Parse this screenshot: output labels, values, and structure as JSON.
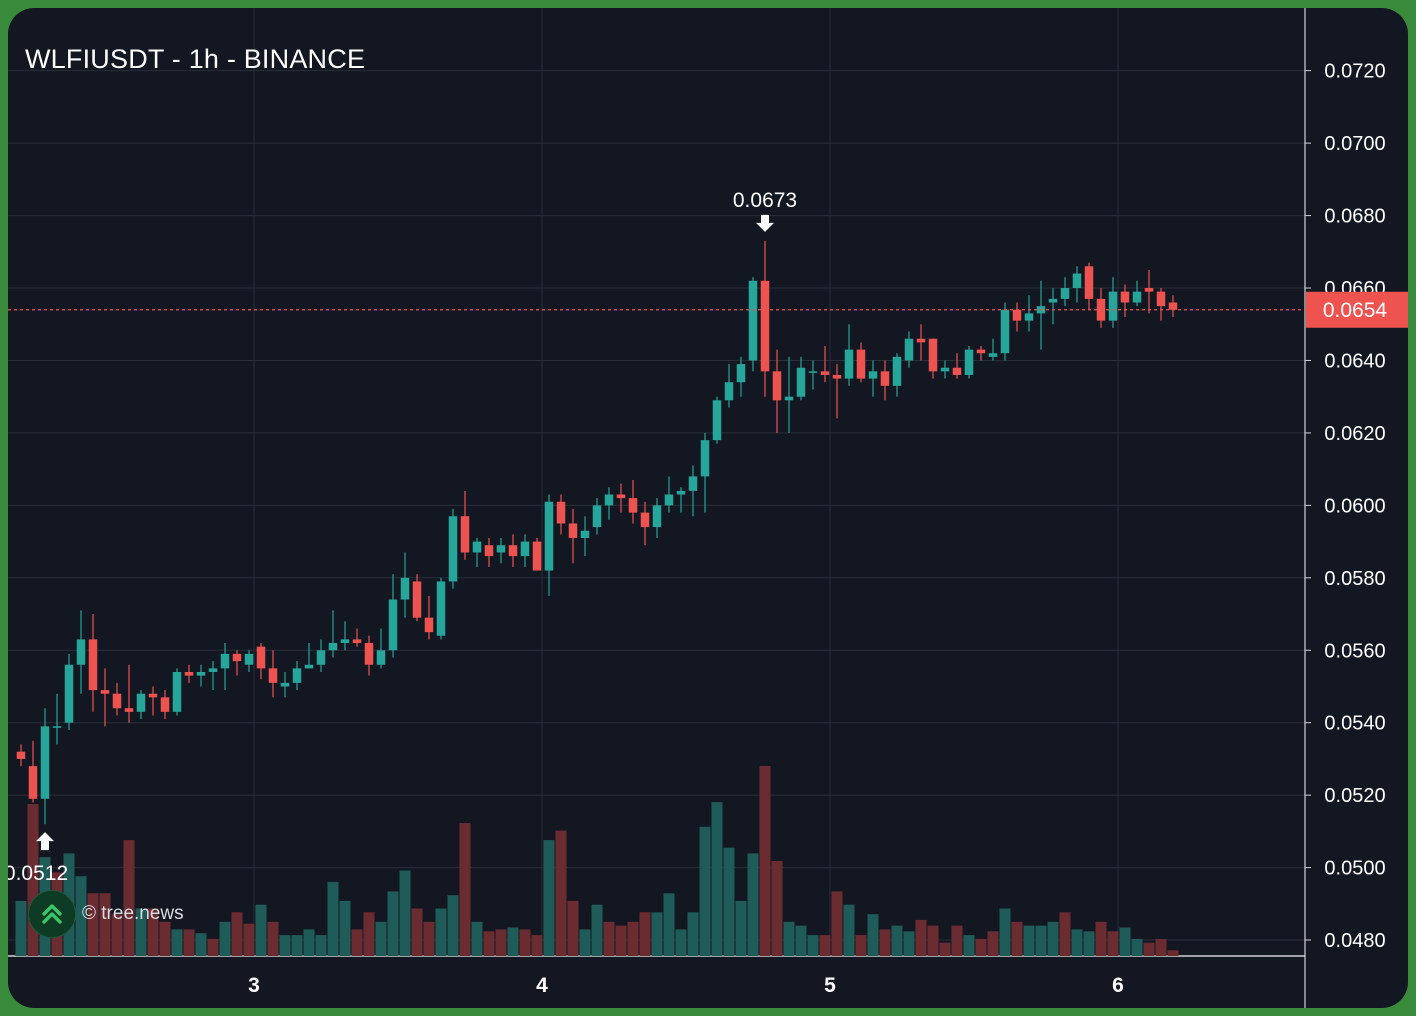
{
  "header": {
    "title": "WLFIUSDT - 1h - BINANCE"
  },
  "watermark": {
    "text": "© tree.news",
    "icon": "tree-news-logo-icon"
  },
  "colors": {
    "background": "#131722",
    "frame": "#3a8a3c",
    "up": "#26a69a",
    "down": "#ef5350",
    "grid": "#2a2e39",
    "text": "#ffffff"
  },
  "chart_data": {
    "type": "candlestick",
    "symbol": "WLFIUSDT",
    "interval": "1h",
    "exchange": "BINANCE",
    "y_ticks": [
      "0.0720",
      "0.0700",
      "0.0680",
      "0.0660",
      "0.0640",
      "0.0620",
      "0.0600",
      "0.0580",
      "0.0560",
      "0.0540",
      "0.0520",
      "0.0500",
      "0.0480"
    ],
    "x_ticks": [
      "3",
      "4",
      "5",
      "6"
    ],
    "ylim": [
      0.0473,
      0.0737
    ],
    "last_price": "0.0654",
    "annotations": [
      {
        "label": "0.0673",
        "type": "high",
        "price": 0.0673,
        "candle": 62
      },
      {
        "label": "0.0512",
        "type": "low",
        "price": 0.0512,
        "candle": 2
      }
    ],
    "candles": [
      [
        0.0532,
        0.0534,
        0.0528,
        0.053
      ],
      [
        0.0528,
        0.0535,
        0.0518,
        0.0519
      ],
      [
        0.0519,
        0.0544,
        0.0512,
        0.0539
      ],
      [
        0.0539,
        0.0548,
        0.0534,
        0.0539
      ],
      [
        0.054,
        0.0559,
        0.0538,
        0.0556
      ],
      [
        0.0556,
        0.0571,
        0.0548,
        0.0563
      ],
      [
        0.0563,
        0.057,
        0.0543,
        0.0549
      ],
      [
        0.0549,
        0.0555,
        0.0539,
        0.0548
      ],
      [
        0.0548,
        0.0551,
        0.0542,
        0.0544
      ],
      [
        0.0544,
        0.0556,
        0.054,
        0.0543
      ],
      [
        0.0543,
        0.0549,
        0.0541,
        0.0548
      ],
      [
        0.0548,
        0.055,
        0.0542,
        0.0547
      ],
      [
        0.0547,
        0.0549,
        0.0541,
        0.0543
      ],
      [
        0.0543,
        0.0555,
        0.0542,
        0.0554
      ],
      [
        0.0554,
        0.0556,
        0.0551,
        0.0553
      ],
      [
        0.0553,
        0.0556,
        0.055,
        0.0554
      ],
      [
        0.0554,
        0.0557,
        0.0549,
        0.0555
      ],
      [
        0.0555,
        0.0562,
        0.0549,
        0.0559
      ],
      [
        0.0559,
        0.056,
        0.0553,
        0.0557
      ],
      [
        0.0556,
        0.056,
        0.0554,
        0.0559
      ],
      [
        0.0561,
        0.0562,
        0.0552,
        0.0555
      ],
      [
        0.0555,
        0.056,
        0.0547,
        0.0551
      ],
      [
        0.055,
        0.0554,
        0.0547,
        0.0551
      ],
      [
        0.0551,
        0.0557,
        0.0549,
        0.0555
      ],
      [
        0.0555,
        0.0562,
        0.0555,
        0.0556
      ],
      [
        0.0556,
        0.0563,
        0.0554,
        0.056
      ],
      [
        0.056,
        0.0571,
        0.0558,
        0.0562
      ],
      [
        0.0562,
        0.0568,
        0.056,
        0.0563
      ],
      [
        0.0563,
        0.0566,
        0.0561,
        0.0562
      ],
      [
        0.0562,
        0.0564,
        0.0553,
        0.0556
      ],
      [
        0.0556,
        0.0566,
        0.0555,
        0.056
      ],
      [
        0.056,
        0.0581,
        0.0558,
        0.0574
      ],
      [
        0.0574,
        0.0587,
        0.0569,
        0.058
      ],
      [
        0.0579,
        0.0581,
        0.0568,
        0.0569
      ],
      [
        0.0569,
        0.0575,
        0.0563,
        0.0565
      ],
      [
        0.0564,
        0.058,
        0.0563,
        0.0579
      ],
      [
        0.0579,
        0.0599,
        0.0577,
        0.0597
      ],
      [
        0.0597,
        0.0604,
        0.0585,
        0.0587
      ],
      [
        0.0587,
        0.0591,
        0.0583,
        0.059
      ],
      [
        0.0589,
        0.0591,
        0.0583,
        0.0586
      ],
      [
        0.0587,
        0.0591,
        0.0584,
        0.0589
      ],
      [
        0.0589,
        0.0592,
        0.0583,
        0.0586
      ],
      [
        0.0586,
        0.0592,
        0.0583,
        0.059
      ],
      [
        0.059,
        0.0591,
        0.0582,
        0.0582
      ],
      [
        0.0582,
        0.0603,
        0.0575,
        0.0601
      ],
      [
        0.0601,
        0.0603,
        0.0592,
        0.0595
      ],
      [
        0.0595,
        0.0599,
        0.0584,
        0.0591
      ],
      [
        0.0591,
        0.0597,
        0.0586,
        0.0593
      ],
      [
        0.0594,
        0.0602,
        0.0592,
        0.06
      ],
      [
        0.06,
        0.0605,
        0.0596,
        0.0603
      ],
      [
        0.0603,
        0.0606,
        0.0598,
        0.0602
      ],
      [
        0.0602,
        0.0607,
        0.0595,
        0.0598
      ],
      [
        0.0598,
        0.0601,
        0.0589,
        0.0594
      ],
      [
        0.0594,
        0.0602,
        0.0591,
        0.06
      ],
      [
        0.06,
        0.0608,
        0.0598,
        0.0603
      ],
      [
        0.0603,
        0.0605,
        0.0598,
        0.0604
      ],
      [
        0.0604,
        0.0611,
        0.0597,
        0.0608
      ],
      [
        0.0608,
        0.062,
        0.0598,
        0.0618
      ],
      [
        0.0618,
        0.063,
        0.0617,
        0.0629
      ],
      [
        0.0629,
        0.0639,
        0.0627,
        0.0634
      ],
      [
        0.0634,
        0.0641,
        0.063,
        0.0639
      ],
      [
        0.064,
        0.0663,
        0.0637,
        0.0662
      ],
      [
        0.0662,
        0.0673,
        0.063,
        0.0637
      ],
      [
        0.0637,
        0.0643,
        0.062,
        0.0629
      ],
      [
        0.0629,
        0.0641,
        0.062,
        0.063
      ],
      [
        0.063,
        0.0641,
        0.0629,
        0.0638
      ],
      [
        0.0637,
        0.064,
        0.0632,
        0.0637
      ],
      [
        0.0637,
        0.0644,
        0.0634,
        0.0636
      ],
      [
        0.0636,
        0.0639,
        0.0624,
        0.0635
      ],
      [
        0.0635,
        0.065,
        0.0633,
        0.0643
      ],
      [
        0.0643,
        0.0645,
        0.0634,
        0.0635
      ],
      [
        0.0635,
        0.064,
        0.063,
        0.0637
      ],
      [
        0.0637,
        0.064,
        0.0629,
        0.0633
      ],
      [
        0.0633,
        0.0642,
        0.063,
        0.0641
      ],
      [
        0.064,
        0.0648,
        0.0638,
        0.0646
      ],
      [
        0.0646,
        0.065,
        0.064,
        0.0645
      ],
      [
        0.0646,
        0.0646,
        0.0635,
        0.0637
      ],
      [
        0.0637,
        0.064,
        0.0635,
        0.0638
      ],
      [
        0.0638,
        0.0642,
        0.0635,
        0.0636
      ],
      [
        0.0636,
        0.0644,
        0.0635,
        0.0643
      ],
      [
        0.0643,
        0.0644,
        0.064,
        0.0642
      ],
      [
        0.0641,
        0.0646,
        0.064,
        0.0642
      ],
      [
        0.0642,
        0.0656,
        0.064,
        0.0654
      ],
      [
        0.0654,
        0.0656,
        0.0648,
        0.0651
      ],
      [
        0.0651,
        0.0658,
        0.0648,
        0.0653
      ],
      [
        0.0653,
        0.0662,
        0.0643,
        0.0655
      ],
      [
        0.0656,
        0.066,
        0.065,
        0.0657
      ],
      [
        0.0657,
        0.0663,
        0.0655,
        0.066
      ],
      [
        0.066,
        0.0666,
        0.0656,
        0.0664
      ],
      [
        0.0666,
        0.0667,
        0.0654,
        0.0657
      ],
      [
        0.0657,
        0.066,
        0.0649,
        0.0651
      ],
      [
        0.0651,
        0.0663,
        0.0649,
        0.0659
      ],
      [
        0.0659,
        0.0661,
        0.0652,
        0.0656
      ],
      [
        0.0656,
        0.0662,
        0.0655,
        0.0659
      ],
      [
        0.066,
        0.0665,
        0.0653,
        0.0659
      ],
      [
        0.0659,
        0.066,
        0.0651,
        0.0655
      ],
      [
        0.0656,
        0.0658,
        0.0652,
        0.0654
      ]
    ],
    "volume": [
      {
        "v": 0.29,
        "up": true
      },
      {
        "v": 0.8,
        "up": false
      },
      {
        "v": 0.52,
        "up": true
      },
      {
        "v": 0.44,
        "up": false
      },
      {
        "v": 0.54,
        "up": true
      },
      {
        "v": 0.42,
        "up": true
      },
      {
        "v": 0.33,
        "up": false
      },
      {
        "v": 0.33,
        "up": false
      },
      {
        "v": 0.22,
        "up": false
      },
      {
        "v": 0.61,
        "up": false
      },
      {
        "v": 0.25,
        "up": true
      },
      {
        "v": 0.25,
        "up": false
      },
      {
        "v": 0.18,
        "up": false
      },
      {
        "v": 0.14,
        "up": true
      },
      {
        "v": 0.14,
        "up": false
      },
      {
        "v": 0.12,
        "up": true
      },
      {
        "v": 0.09,
        "up": false
      },
      {
        "v": 0.18,
        "up": true
      },
      {
        "v": 0.23,
        "up": false
      },
      {
        "v": 0.17,
        "up": false
      },
      {
        "v": 0.27,
        "up": true
      },
      {
        "v": 0.18,
        "up": false
      },
      {
        "v": 0.11,
        "up": true
      },
      {
        "v": 0.11,
        "up": true
      },
      {
        "v": 0.14,
        "up": true
      },
      {
        "v": 0.11,
        "up": true
      },
      {
        "v": 0.39,
        "up": true
      },
      {
        "v": 0.29,
        "up": true
      },
      {
        "v": 0.14,
        "up": false
      },
      {
        "v": 0.23,
        "up": false
      },
      {
        "v": 0.18,
        "up": true
      },
      {
        "v": 0.34,
        "up": true
      },
      {
        "v": 0.45,
        "up": true
      },
      {
        "v": 0.25,
        "up": false
      },
      {
        "v": 0.18,
        "up": false
      },
      {
        "v": 0.25,
        "up": true
      },
      {
        "v": 0.32,
        "up": true
      },
      {
        "v": 0.7,
        "up": false
      },
      {
        "v": 0.18,
        "up": true
      },
      {
        "v": 0.13,
        "up": false
      },
      {
        "v": 0.14,
        "up": false
      },
      {
        "v": 0.15,
        "up": true
      },
      {
        "v": 0.14,
        "up": false
      },
      {
        "v": 0.11,
        "up": false
      },
      {
        "v": 0.61,
        "up": true
      },
      {
        "v": 0.66,
        "up": false
      },
      {
        "v": 0.29,
        "up": false
      },
      {
        "v": 0.14,
        "up": true
      },
      {
        "v": 0.27,
        "up": true
      },
      {
        "v": 0.18,
        "up": false
      },
      {
        "v": 0.16,
        "up": false
      },
      {
        "v": 0.18,
        "up": false
      },
      {
        "v": 0.23,
        "up": false
      },
      {
        "v": 0.23,
        "up": true
      },
      {
        "v": 0.33,
        "up": true
      },
      {
        "v": 0.14,
        "up": true
      },
      {
        "v": 0.23,
        "up": true
      },
      {
        "v": 0.68,
        "up": true
      },
      {
        "v": 0.81,
        "up": true
      },
      {
        "v": 0.57,
        "up": true
      },
      {
        "v": 0.29,
        "up": true
      },
      {
        "v": 0.54,
        "up": true
      },
      {
        "v": 1.0,
        "up": false
      },
      {
        "v": 0.5,
        "up": false
      },
      {
        "v": 0.18,
        "up": true
      },
      {
        "v": 0.16,
        "up": true
      },
      {
        "v": 0.11,
        "up": true
      },
      {
        "v": 0.11,
        "up": false
      },
      {
        "v": 0.34,
        "up": false
      },
      {
        "v": 0.27,
        "up": true
      },
      {
        "v": 0.11,
        "up": false
      },
      {
        "v": 0.22,
        "up": true
      },
      {
        "v": 0.14,
        "up": false
      },
      {
        "v": 0.16,
        "up": true
      },
      {
        "v": 0.13,
        "up": true
      },
      {
        "v": 0.19,
        "up": false
      },
      {
        "v": 0.16,
        "up": false
      },
      {
        "v": 0.07,
        "up": false
      },
      {
        "v": 0.16,
        "up": false
      },
      {
        "v": 0.11,
        "up": true
      },
      {
        "v": 0.09,
        "up": false
      },
      {
        "v": 0.13,
        "up": false
      },
      {
        "v": 0.25,
        "up": true
      },
      {
        "v": 0.18,
        "up": false
      },
      {
        "v": 0.16,
        "up": true
      },
      {
        "v": 0.16,
        "up": true
      },
      {
        "v": 0.18,
        "up": true
      },
      {
        "v": 0.23,
        "up": false
      },
      {
        "v": 0.14,
        "up": true
      },
      {
        "v": 0.13,
        "up": true
      },
      {
        "v": 0.18,
        "up": false
      },
      {
        "v": 0.13,
        "up": false
      },
      {
        "v": 0.15,
        "up": true
      },
      {
        "v": 0.09,
        "up": true
      },
      {
        "v": 0.07,
        "up": false
      },
      {
        "v": 0.09,
        "up": false
      },
      {
        "v": 0.03,
        "up": false
      }
    ]
  }
}
